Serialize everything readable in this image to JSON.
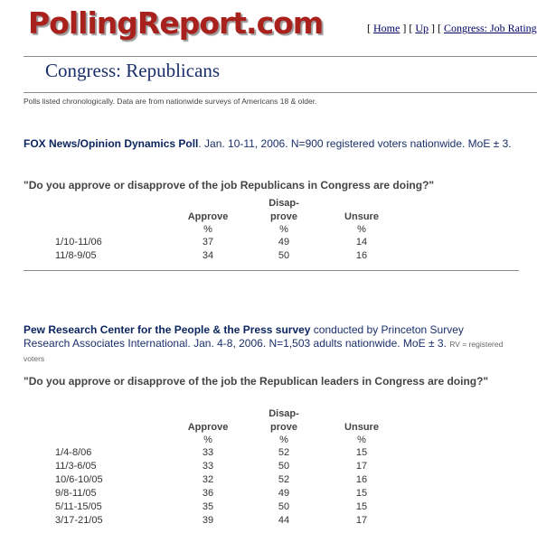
{
  "site": {
    "logo": "PollingReport.com"
  },
  "nav": {
    "open1": "[ ",
    "home": "Home",
    "mid1": " ] [ ",
    "up": "Up",
    "mid2": " ] [ ",
    "current": "Congress: Job Rating"
  },
  "page": {
    "title": "Congress: Republicans",
    "note": "Polls listed chronologically. Data are from nationwide surveys of Americans 18 & older."
  },
  "polls": [
    {
      "org": "FOX News/Opinion Dynamics Poll",
      "details": ". Jan. 10-11, 2006. N=900 registered voters nationwide. MoE ± 3.",
      "question": "\"Do you approve or disapprove of the job Republicans in Congress are doing?\"",
      "columns": {
        "approve": "Approve",
        "disapprove_1": "Disap-",
        "disapprove_2": "prove",
        "unsure": "Unsure",
        "pct": "%"
      },
      "rows": [
        {
          "date": "1/10-11/06",
          "approve": "37",
          "disapprove": "49",
          "unsure": "14"
        },
        {
          "date": "11/8-9/05",
          "approve": "34",
          "disapprove": "50",
          "unsure": "16"
        }
      ]
    },
    {
      "org": "Pew Research Center for the People & the Press survey",
      "details_1": " conducted by Princeton Survey",
      "details_2": "Research Associates International. Jan. 4-8, 2006. N=1,503 adults nationwide. MoE ± 3. ",
      "rv_note": "RV = registered voters",
      "question": "\"Do you approve or disapprove of the job the Republican leaders in Congress are doing?\"",
      "columns": {
        "approve": "Approve",
        "disapprove_1": "Disap-",
        "disapprove_2": "prove",
        "unsure": "Unsure",
        "pct": "%"
      },
      "rows": [
        {
          "date": "1/4-8/06",
          "approve": "33",
          "disapprove": "52",
          "unsure": "15"
        },
        {
          "date": "11/3-6/05",
          "approve": "33",
          "disapprove": "50",
          "unsure": "17"
        },
        {
          "date": "10/6-10/05",
          "approve": "32",
          "disapprove": "52",
          "unsure": "16"
        },
        {
          "date": "9/8-11/05",
          "approve": "36",
          "disapprove": "49",
          "unsure": "15"
        },
        {
          "date": "5/11-15/05",
          "approve": "35",
          "disapprove": "50",
          "unsure": "15"
        },
        {
          "date": "3/17-21/05",
          "approve": "39",
          "disapprove": "44",
          "unsure": "17"
        }
      ]
    }
  ]
}
